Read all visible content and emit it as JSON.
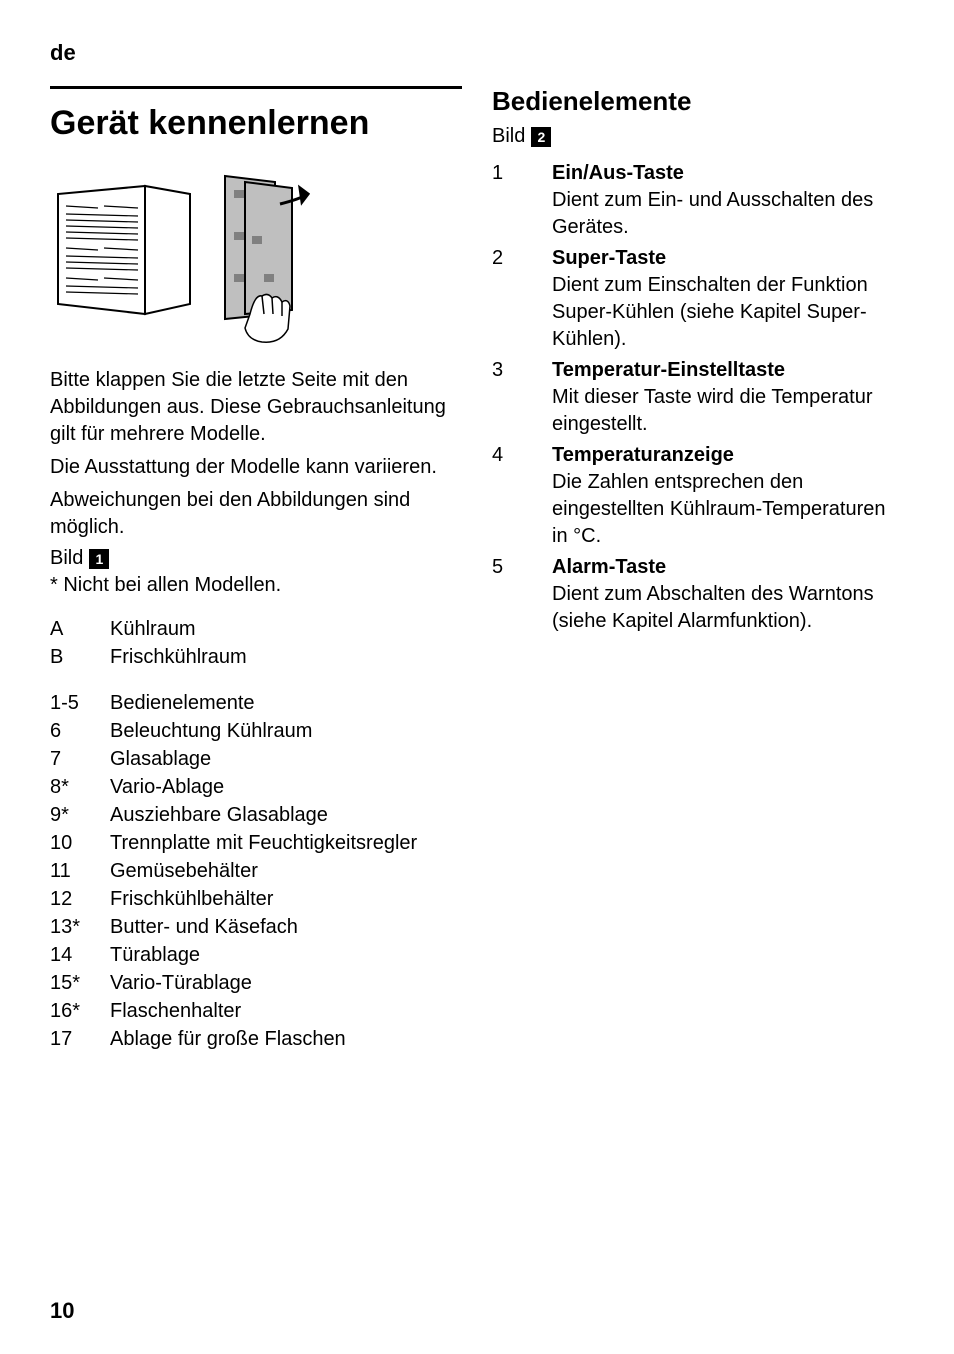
{
  "lang_code": "de",
  "page_number": "10",
  "left": {
    "heading": "Gerät kennenlernen",
    "illustration_svg_title": "manual-foldout-illustration",
    "intro_p1": "Bitte klappen Sie die letzte Seite mit den Abbildungen aus. Diese Gebrauchsanleitung gilt für mehrere Modelle.",
    "intro_p2": "Die Ausstattung der Modelle kann variieren.",
    "intro_p3": "Abweichungen bei den Abbildungen sind möglich.",
    "bild_label": "Bild",
    "bild_num": "1",
    "footnote": "* Nicht bei allen Modellen.",
    "sections": [
      {
        "key": "A",
        "val": "Kühlraum"
      },
      {
        "key": "B",
        "val": "Frischkühlraum"
      }
    ],
    "parts": [
      {
        "key": "1-5",
        "val": "Bedienelemente"
      },
      {
        "key": "6",
        "val": "Beleuchtung Kühlraum"
      },
      {
        "key": "7",
        "val": "Glasablage"
      },
      {
        "key": "8*",
        "val": "Vario-Ablage"
      },
      {
        "key": "9*",
        "val": "Ausziehbare Glasablage"
      },
      {
        "key": "10",
        "val": "Trennplatte mit Feuchtigkeitsregler"
      },
      {
        "key": "11",
        "val": "Gemüsebehälter"
      },
      {
        "key": "12",
        "val": "Frischkühlbehälter"
      },
      {
        "key": "13*",
        "val": "Butter- und Käsefach"
      },
      {
        "key": "14",
        "val": "Türablage"
      },
      {
        "key": "15*",
        "val": "Vario-Türablage"
      },
      {
        "key": "16*",
        "val": "Flaschenhalter"
      },
      {
        "key": "17",
        "val": "Ablage für große Flaschen"
      }
    ]
  },
  "right": {
    "heading": "Bedienelemente",
    "bild_label": "Bild",
    "bild_num": "2",
    "controls": [
      {
        "num": "1",
        "title": "Ein/Aus-Taste",
        "desc": "Dient zum Ein- und Ausschalten des Gerätes."
      },
      {
        "num": "2",
        "title": "Super-Taste",
        "desc": "Dient zum Einschalten der Funktion Super-Kühlen (siehe Kapitel Super-Kühlen)."
      },
      {
        "num": "3",
        "title": "Temperatur-Einstelltaste",
        "desc": "Mit dieser Taste wird die Temperatur eingestellt."
      },
      {
        "num": "4",
        "title": "Temperaturanzeige",
        "desc": "Die Zahlen entsprechen den eingestellten Kühlraum-Temperaturen in °C."
      },
      {
        "num": "5",
        "title": "Alarm-Taste",
        "desc": "Dient zum Abschalten des Warntons (siehe Kapitel Alarmfunktion)."
      }
    ]
  }
}
